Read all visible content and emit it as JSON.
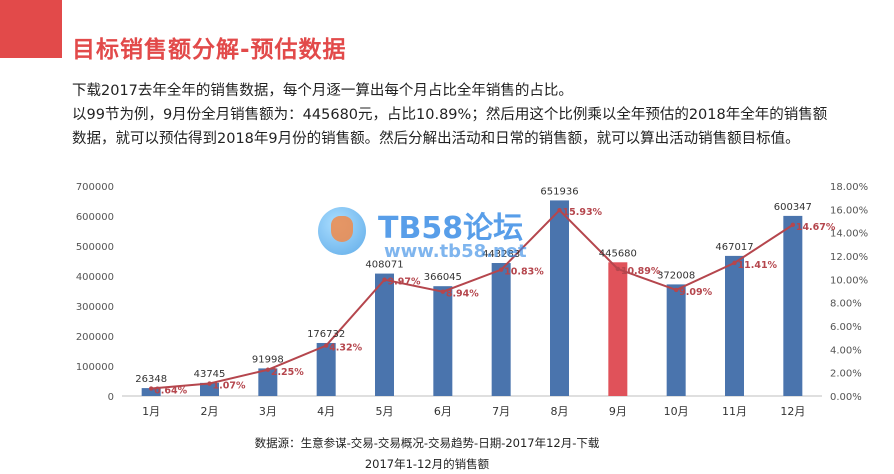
{
  "header": {
    "title": "目标销售额分解-预估数据",
    "paragraph_1": "下载2017去年全年的销售数据，每个月逐一算出每个月占比全年销售的占比。",
    "paragraph_2": "以99节为例，9月份全月销售额为：445680元，占比10.89%；然后用这个比例乘以全年预估的2018年全年的销售额",
    "paragraph_3": "数据，就可以预估得到2018年9月份的销售额。然后分解出活动和日常的销售额，就可以算出活动销售额目标值。"
  },
  "watermark": {
    "text": "TB58论坛",
    "url": "www.tb58.net"
  },
  "captions": {
    "source": "数据源：生意参谋-交易-交易概况-交易趋势-日期-2017年12月-下载",
    "subtitle": "2017年1-12月的销售额"
  },
  "colors": {
    "accent": "#e24a4a",
    "bar": "#4a74ad",
    "bar_highlight": "#e0525a",
    "line": "#b5464d"
  },
  "chart_data": {
    "type": "bar",
    "categories": [
      "1月",
      "2月",
      "3月",
      "4月",
      "5月",
      "6月",
      "7月",
      "8月",
      "9月",
      "10月",
      "11月",
      "12月"
    ],
    "series": [
      {
        "type": "bar",
        "axis": "left",
        "values": [
          26348,
          43745,
          91998,
          176732,
          408071,
          366045,
          443283,
          651936,
          445680,
          372008,
          467017,
          600347
        ],
        "labels": [
          "26348",
          "43745",
          "91998",
          "176732",
          "408071",
          "366045",
          "443283",
          "651936",
          "445680",
          "372008",
          "467017",
          "600347"
        ],
        "highlight_index": 8
      },
      {
        "type": "line",
        "axis": "right",
        "values": [
          0.64,
          1.07,
          2.25,
          4.32,
          9.97,
          8.94,
          10.83,
          15.93,
          10.89,
          9.09,
          11.41,
          14.67
        ],
        "labels": [
          "0.64%",
          "1.07%",
          "2.25%",
          "4.32%",
          "9.97%",
          "8.94%",
          "10.83%",
          "15.93%",
          "10.89%",
          "9.09%",
          "11.41%",
          "14.67%"
        ]
      }
    ],
    "y_left": {
      "min": 0,
      "max": 700000,
      "step": 100000,
      "ticks": [
        "0",
        "100000",
        "200000",
        "300000",
        "400000",
        "500000",
        "600000",
        "700000"
      ]
    },
    "y_right": {
      "min": 0,
      "max": 18,
      "step": 2,
      "ticks": [
        "0.00%",
        "2.00%",
        "4.00%",
        "6.00%",
        "8.00%",
        "10.00%",
        "12.00%",
        "14.00%",
        "16.00%",
        "18.00%"
      ]
    },
    "grid": false
  }
}
